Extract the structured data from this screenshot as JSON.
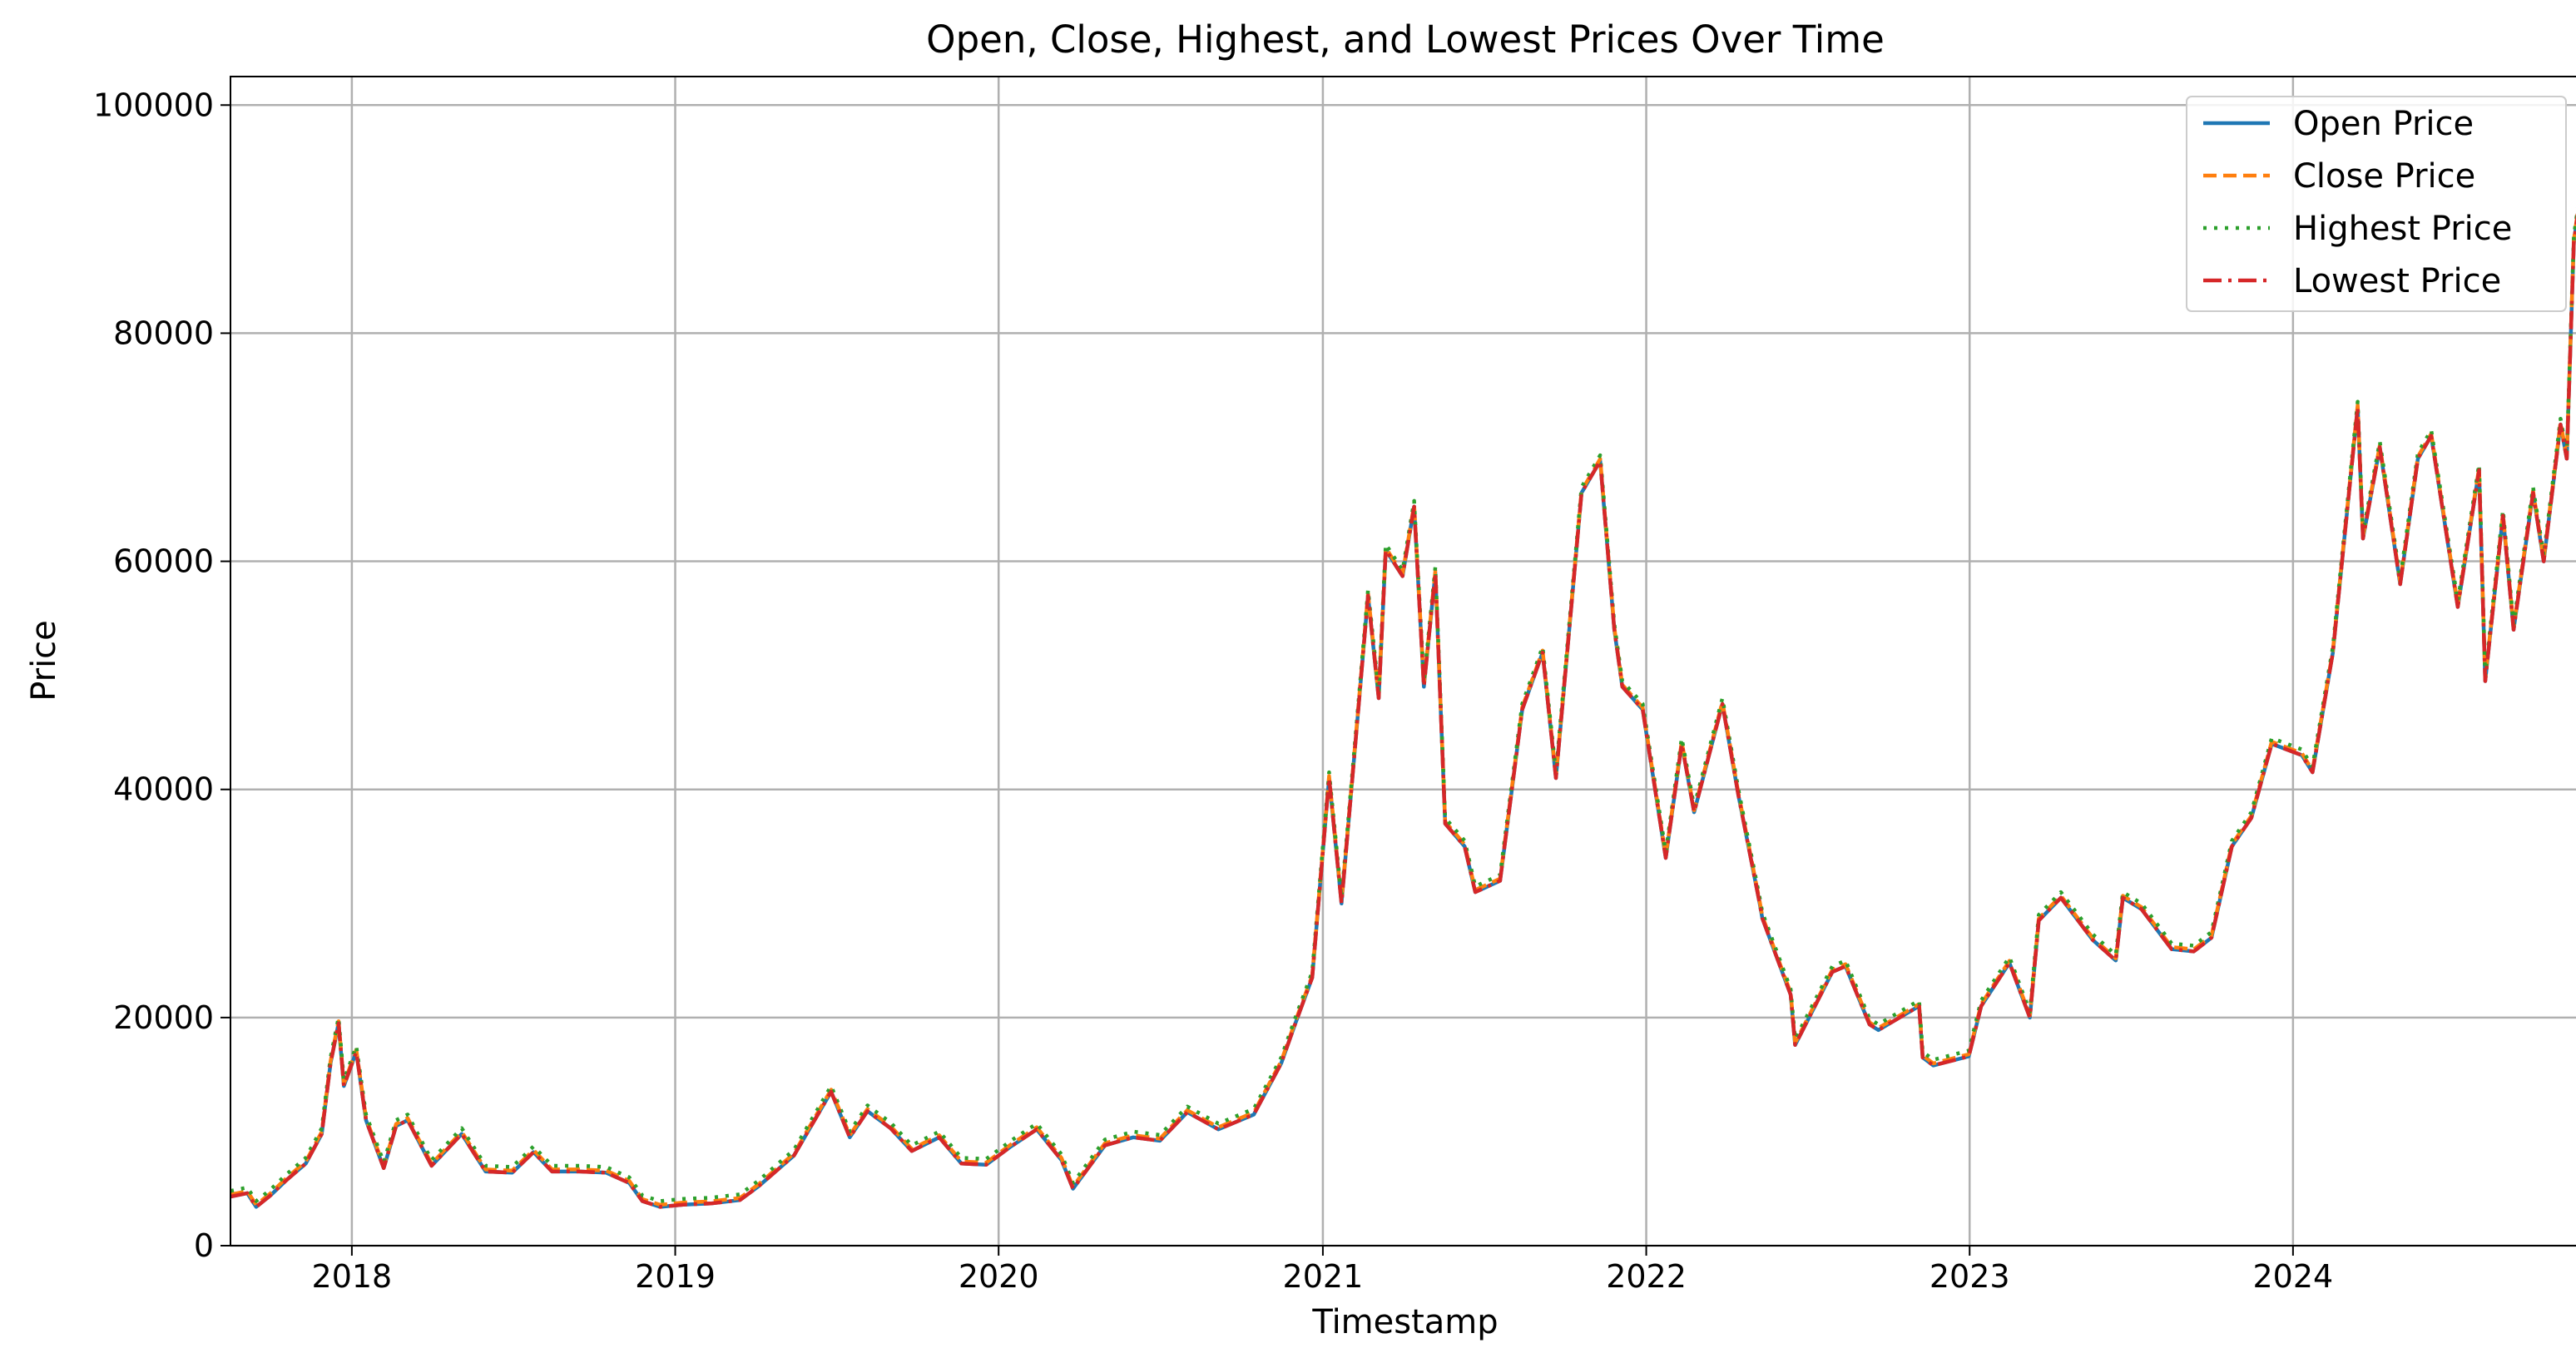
{
  "chart_data": {
    "type": "line",
    "title": "Open, Close, Highest, and Lowest Prices Over Time",
    "xlabel": "Timestamp",
    "ylabel": "Price",
    "xlim": [
      "2017-08-17",
      "2024-11-22"
    ],
    "ylim": [
      0,
      102500
    ],
    "x_ticks": [
      "2018",
      "2019",
      "2020",
      "2021",
      "2022",
      "2023",
      "2024"
    ],
    "y_ticks": [
      "0",
      "20000",
      "40000",
      "60000",
      "80000",
      "100000"
    ],
    "grid": true,
    "legend_position": "top-right",
    "series": [
      {
        "name": "Open Price",
        "color": "#1f77b4",
        "dash": "solid"
      },
      {
        "name": "Close Price",
        "color": "#ff7f0e",
        "dash": "dashed"
      },
      {
        "name": "Highest Price",
        "color": "#2ca02c",
        "dash": "dotted"
      },
      {
        "name": "Lowest Price",
        "color": "#d62728",
        "dash": "dashdot"
      }
    ],
    "x": [
      "2017-08-17",
      "2017-09-05",
      "2017-09-15",
      "2017-10-01",
      "2017-10-20",
      "2017-11-10",
      "2017-11-28",
      "2017-12-08",
      "2017-12-17",
      "2017-12-23",
      "2018-01-06",
      "2018-01-17",
      "2018-02-06",
      "2018-02-20",
      "2018-03-05",
      "2018-04-01",
      "2018-05-05",
      "2018-06-01",
      "2018-07-01",
      "2018-07-25",
      "2018-08-15",
      "2018-09-15",
      "2018-10-15",
      "2018-11-10",
      "2018-11-25",
      "2018-12-15",
      "2019-01-10",
      "2019-02-10",
      "2019-03-15",
      "2019-04-05",
      "2019-05-15",
      "2019-06-26",
      "2019-07-17",
      "2019-08-06",
      "2019-09-01",
      "2019-09-25",
      "2019-10-26",
      "2019-11-20",
      "2019-12-18",
      "2020-01-15",
      "2020-02-13",
      "2020-03-12",
      "2020-03-25",
      "2020-04-30",
      "2020-06-01",
      "2020-07-01",
      "2020-08-01",
      "2020-09-05",
      "2020-10-15",
      "2020-11-15",
      "2020-12-01",
      "2020-12-20",
      "2021-01-08",
      "2021-01-22",
      "2021-02-10",
      "2021-02-21",
      "2021-03-05",
      "2021-03-13",
      "2021-04-01",
      "2021-04-14",
      "2021-04-25",
      "2021-05-08",
      "2021-05-19",
      "2021-06-10",
      "2021-06-22",
      "2021-07-20",
      "2021-08-14",
      "2021-09-06",
      "2021-09-21",
      "2021-10-20",
      "2021-11-10",
      "2021-11-26",
      "2021-12-05",
      "2021-12-28",
      "2022-01-23",
      "2022-02-10",
      "2022-02-24",
      "2022-03-28",
      "2022-04-15",
      "2022-05-09",
      "2022-05-12",
      "2022-06-13",
      "2022-06-18",
      "2022-07-30",
      "2022-08-14",
      "2022-09-10",
      "2022-09-20",
      "2022-11-05",
      "2022-11-09",
      "2022-11-21",
      "2022-12-31",
      "2023-01-14",
      "2023-02-15",
      "2023-03-10",
      "2023-03-20",
      "2023-04-14",
      "2023-05-20",
      "2023-06-15",
      "2023-06-23",
      "2023-07-14",
      "2023-08-17",
      "2023-09-11",
      "2023-10-01",
      "2023-10-24",
      "2023-11-15",
      "2023-12-08",
      "2024-01-11",
      "2024-01-23",
      "2024-02-15",
      "2024-02-28",
      "2024-03-14",
      "2024-03-20",
      "2024-04-08",
      "2024-05-01",
      "2024-05-21",
      "2024-06-05",
      "2024-07-05",
      "2024-07-29",
      "2024-08-05",
      "2024-08-25",
      "2024-09-06",
      "2024-09-28",
      "2024-10-10",
      "2024-10-29",
      "2024-11-05",
      "2024-11-13",
      "2024-11-22"
    ],
    "y": [
      4300,
      4600,
      3400,
      4400,
      5800,
      7200,
      9800,
      16000,
      19500,
      14000,
      17000,
      11000,
      6800,
      10500,
      11000,
      7000,
      9800,
      6500,
      6400,
      8200,
      6500,
      6500,
      6400,
      5500,
      3900,
      3400,
      3600,
      3700,
      4000,
      5200,
      7900,
      13500,
      9500,
      11800,
      10300,
      8300,
      9500,
      7200,
      7100,
      8700,
      10200,
      7500,
      5000,
      8800,
      9500,
      9200,
      11700,
      10200,
      11500,
      16000,
      19500,
      23500,
      41000,
      30000,
      47000,
      57000,
      48000,
      61000,
      58700,
      64800,
      49000,
      59000,
      37000,
      35000,
      31000,
      32000,
      47000,
      52000,
      41000,
      66000,
      68800,
      54000,
      49000,
      47000,
      34000,
      44000,
      38000,
      47500,
      39500,
      30000,
      28700,
      22000,
      17600,
      24000,
      24500,
      19400,
      18900,
      21000,
      16500,
      15800,
      16600,
      21000,
      24800,
      20000,
      28500,
      30500,
      26800,
      25000,
      30500,
      29500,
      26000,
      25800,
      27000,
      35000,
      37500,
      44000,
      43000,
      41500,
      52000,
      62000,
      73500,
      62000,
      70000,
      58000,
      69000,
      71000,
      56000,
      68000,
      49500,
      64000,
      54000,
      66000,
      60000,
      72000,
      69000,
      88000,
      93000
    ]
  }
}
